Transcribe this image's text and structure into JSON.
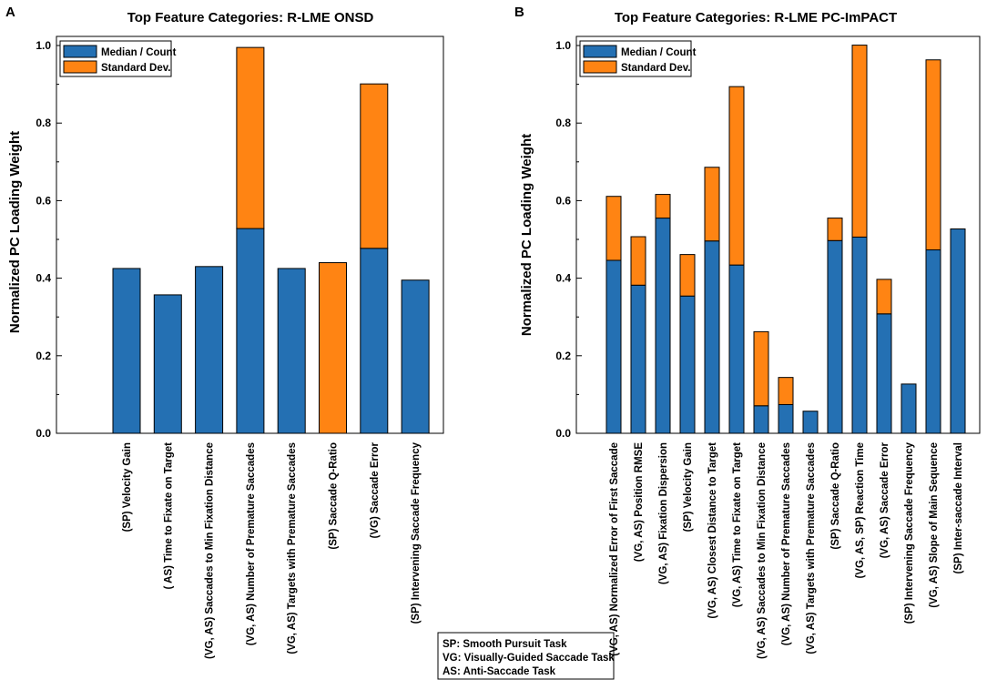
{
  "chart_data": [
    {
      "panel": "A",
      "type": "bar",
      "stacked": true,
      "title": "Top Feature Categories: R-LME ONSD",
      "ylabel": "Normalized PC Loading Weight",
      "xlabel": "",
      "ylim": [
        0,
        1.0
      ],
      "yticks": [
        "0.0",
        "0.2",
        "0.4",
        "0.6",
        "0.8",
        "1.0"
      ],
      "legend_position": "top-left",
      "categories": [
        "(SP) Velocity Gain",
        "( AS) Time to Fixate on Target",
        "(VG, AS) Saccades to Min Fixation Distance",
        "(VG, AS) Number of Premature Saccades",
        "(VG, AS) Targets with Premature Saccades",
        "(SP) Saccade Q-Ratio",
        "(VG) Saccade Error",
        "(SP) Intervening Saccade Frequency"
      ],
      "series": [
        {
          "name": "Median / Count",
          "color": "#2470b3",
          "values": [
            0.425,
            0.357,
            0.43,
            0.528,
            0.425,
            0.0,
            0.477,
            0.395
          ]
        },
        {
          "name": "Standard Dev.",
          "color": "#ff8413",
          "values": [
            0.0,
            0.0,
            0.0,
            0.467,
            0.0,
            0.44,
            0.424,
            0.0
          ]
        }
      ]
    },
    {
      "panel": "B",
      "type": "bar",
      "stacked": true,
      "title": "Top Feature Categories: R-LME PC-ImPACT",
      "ylabel": "Normalized PC Loading Weight",
      "xlabel": "",
      "ylim": [
        0,
        1.0
      ],
      "yticks": [
        "0.0",
        "0.2",
        "0.4",
        "0.6",
        "0.8",
        "1.0"
      ],
      "legend_position": "top-left",
      "categories": [
        "(VG, AS) Normalized Error of First Saccade",
        "(VG, AS) Position RMSE",
        "(VG, AS) Fixation Dispersion",
        "(SP) Velocity Gain",
        "(VG, AS) Closest Distance to Target",
        "(VG, AS) Time to Fixate on Target",
        "(VG, AS) Saccades to Min Fixation Distance",
        "(VG, AS) Number of Premature Saccades",
        "(VG, AS) Targets with Premature Saccades",
        "(SP) Saccade Q-Ratio",
        "(VG, AS, SP) Reaction Time",
        "(VG, AS) Saccade Error",
        "(SP) Intervening Saccade Frequency",
        "(VG, AS) Slope of Main Sequence",
        "(SP) Inter-saccade Interval"
      ],
      "series": [
        {
          "name": "Median / Count",
          "color": "#2470b3",
          "values": [
            0.446,
            0.382,
            0.555,
            0.354,
            0.496,
            0.434,
            0.071,
            0.074,
            0.057,
            0.497,
            0.506,
            0.308,
            0.127,
            0.473,
            0.527
          ]
        },
        {
          "name": "Standard Dev.",
          "color": "#ff8413",
          "values": [
            0.165,
            0.125,
            0.061,
            0.107,
            0.19,
            0.46,
            0.191,
            0.07,
            0.0,
            0.058,
            0.495,
            0.089,
            0.0,
            0.49,
            0.0
          ]
        }
      ]
    }
  ],
  "task_legend": [
    "SP: Smooth Pursuit Task",
    "VG: Visually-Guided Saccade Task",
    "AS: Anti-Saccade Task"
  ]
}
